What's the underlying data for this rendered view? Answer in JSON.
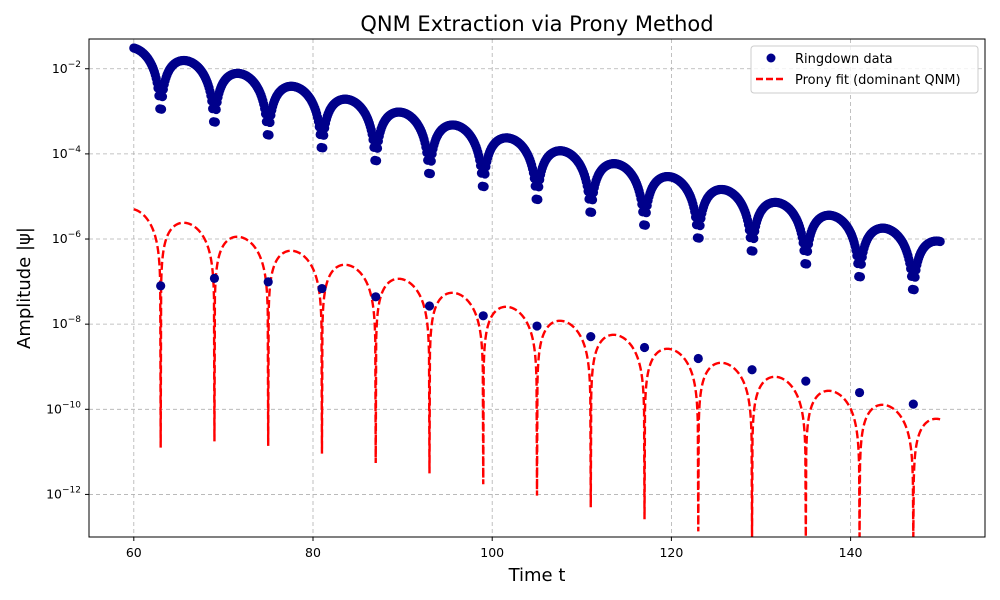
{
  "chart_data": {
    "type": "line",
    "title": "QNM Extraction via Prony Method",
    "xlabel": "Time t",
    "ylabel": "Amplitude |ψ|",
    "yscale": "log",
    "xlim": [
      55,
      155
    ],
    "ylim": [
      1e-13,
      0.05
    ],
    "x_ticks": [
      60,
      80,
      100,
      120,
      140
    ],
    "x_tick_labels": [
      "60",
      "80",
      "100",
      "120",
      "140"
    ],
    "y_tick_exponents": [
      -12,
      -10,
      -8,
      -6,
      -4,
      -2
    ],
    "grid": true,
    "legend_position": "top-right",
    "series": [
      {
        "name": "Ringdown data",
        "style": "markers",
        "color": "#00008b",
        "model": "|A · exp(-t/tau) · cos(omega·(t - 60) + phi)|",
        "A": 0.0307,
        "tau": 8.6,
        "omega": 0.5236,
        "phi": 0.0,
        "t_start": 60,
        "t_end": 150,
        "t_step": 0.1,
        "zero_crossings": [
          63,
          69,
          75,
          81,
          87,
          93,
          99,
          105,
          111,
          117,
          123,
          129,
          135,
          141,
          147
        ]
      },
      {
        "name": "Prony fit (dominant QNM)",
        "style": "dashed",
        "color": "#ff0000",
        "model": "|A · exp(-t/tau) · cos(omega·(t - 60) + phi)|",
        "A": 5e-06,
        "tau": 7.92,
        "omega": 0.5236,
        "phi": 0.0,
        "t_start": 60,
        "t_end": 150,
        "t_step": 0.05,
        "zero_crossings": [
          63,
          69,
          75,
          81,
          87,
          93,
          99,
          105,
          111,
          117,
          123,
          129,
          135,
          141,
          147
        ]
      }
    ]
  }
}
